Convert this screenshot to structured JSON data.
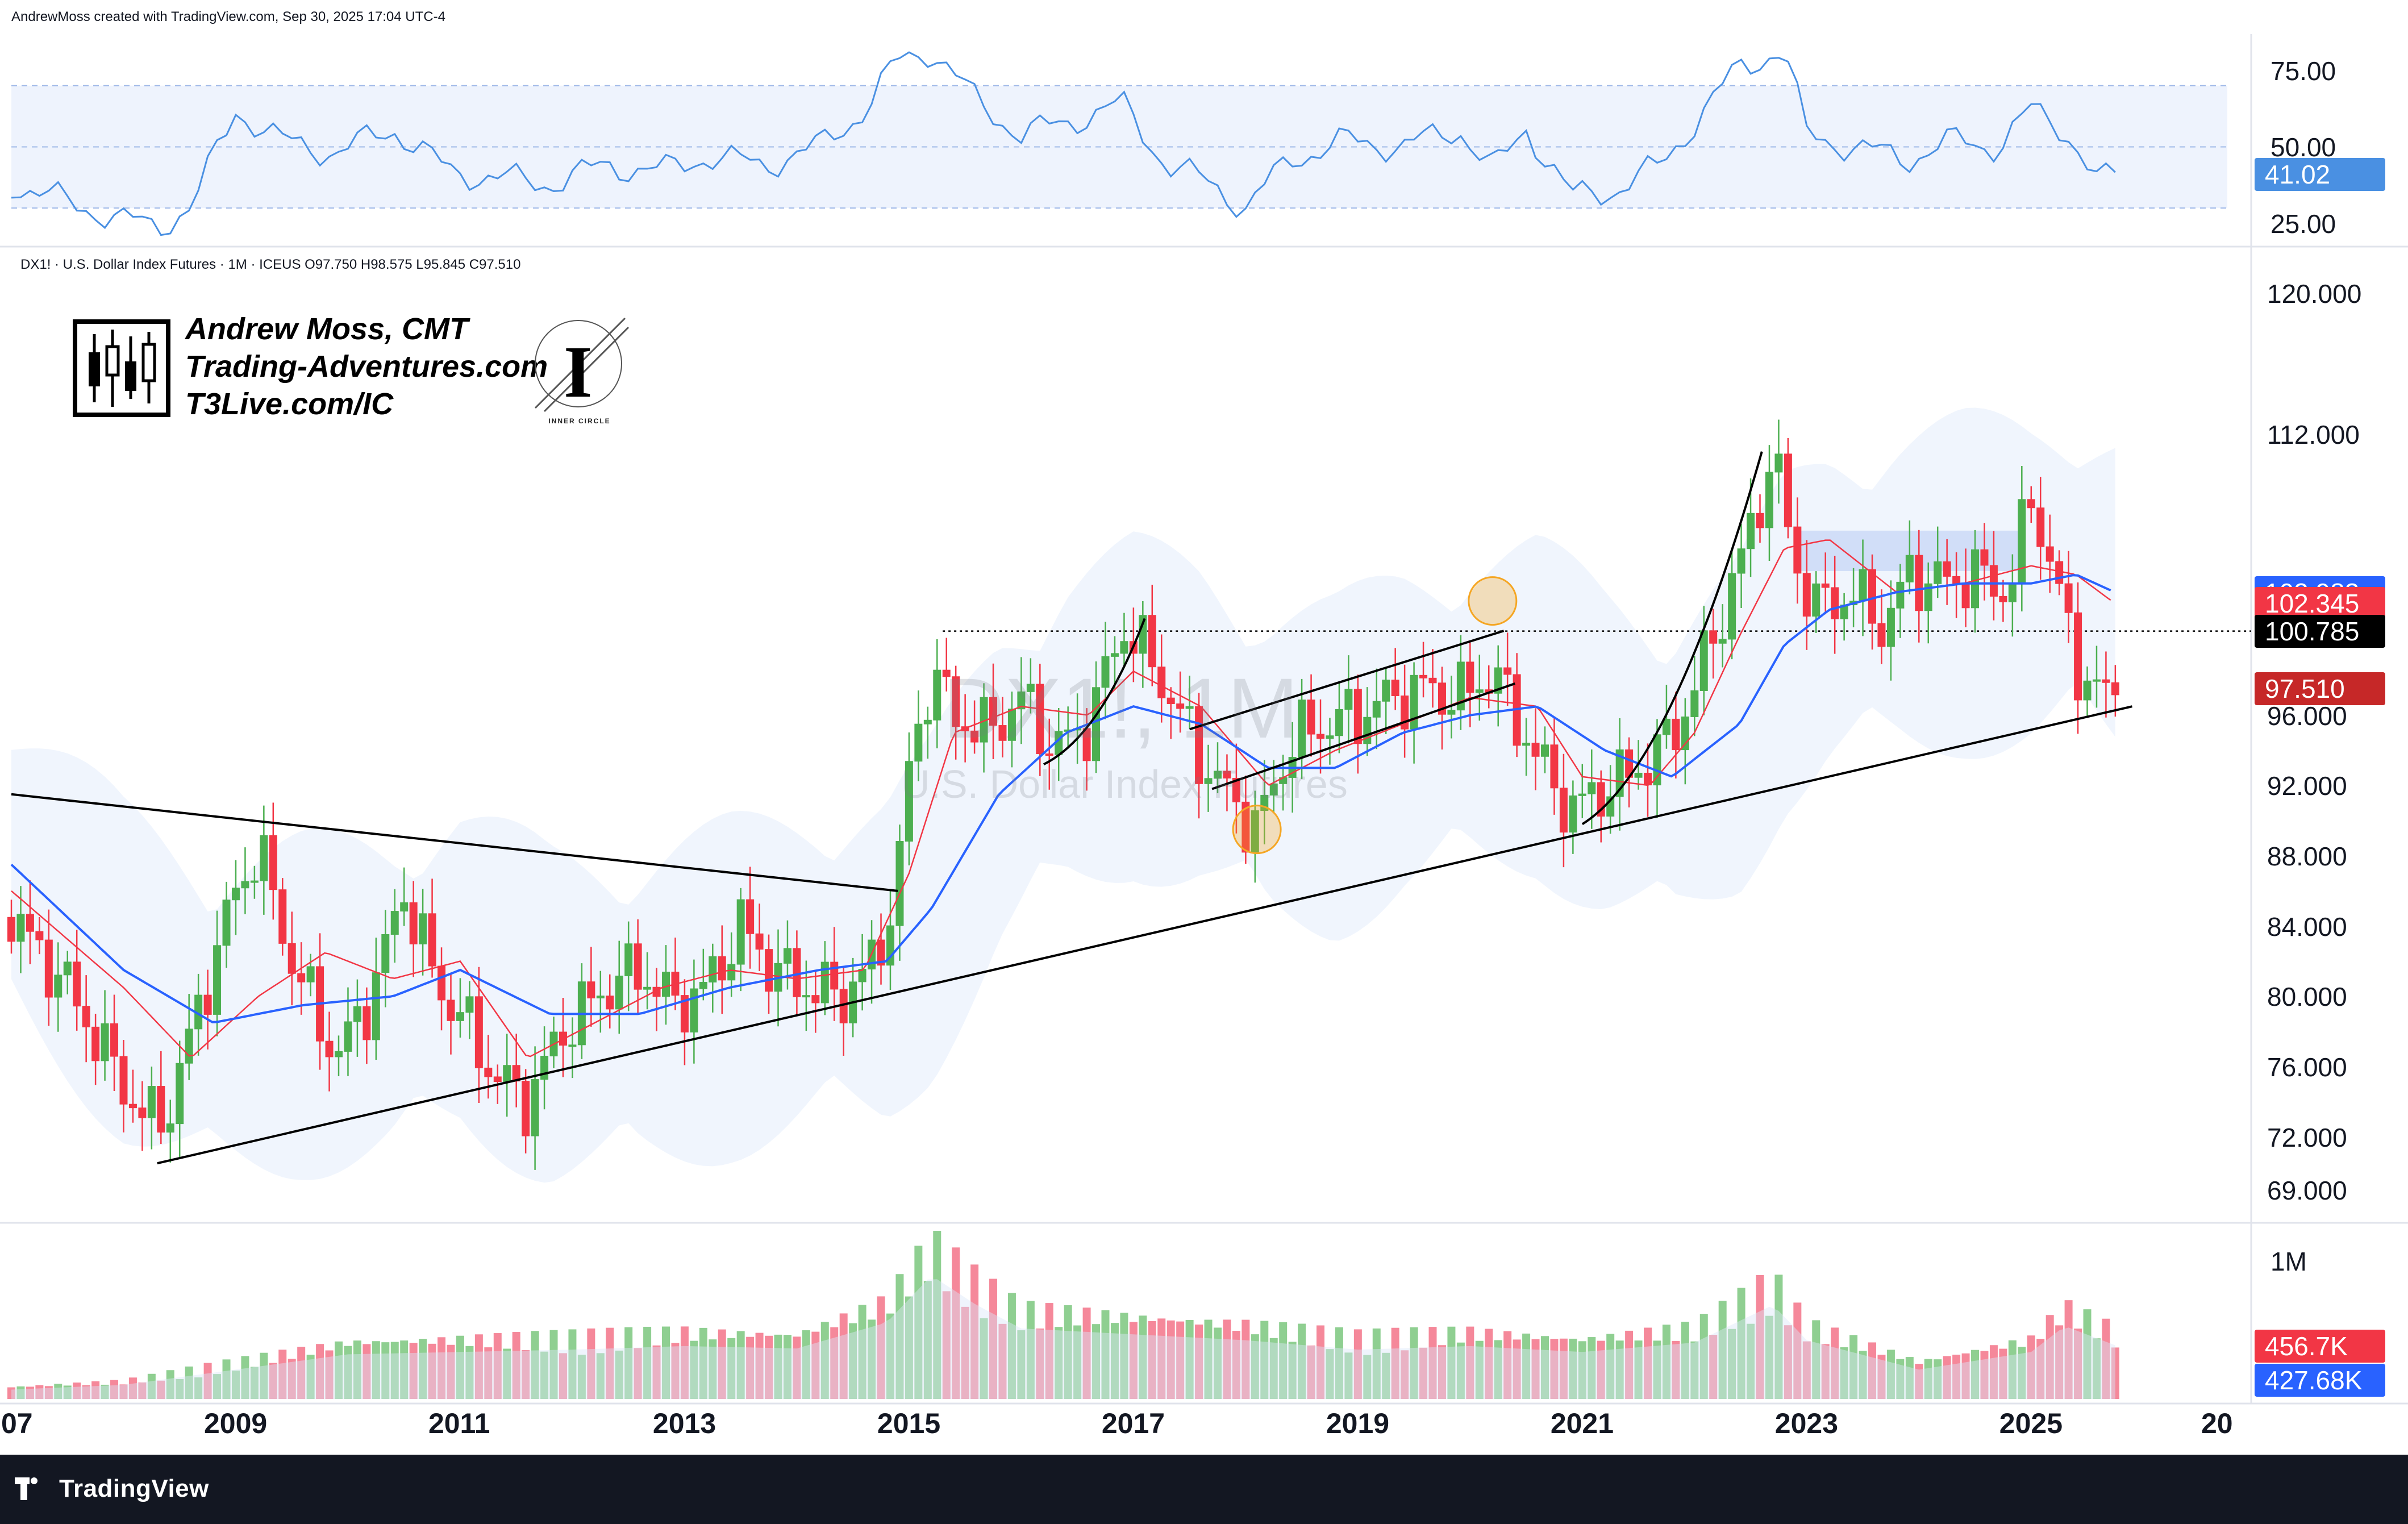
{
  "header": {
    "attribution": "AndrewMoss created with TradingView.com, Sep 30, 2025 17:04 UTC-4"
  },
  "symbol_info": {
    "line": "DX1! · U.S. Dollar Index Futures · 1M · ICEUS  O97.750  H98.575  L95.845  C97.510"
  },
  "branding": {
    "line1": "Andrew Moss, CMT",
    "line2": "Trading-Adventures.com",
    "line3": "T3Live.com/IC",
    "circle_label": "INNER CIRCLE",
    "circle_letter": "I"
  },
  "watermark": {
    "symbol": "DX1!, 1M",
    "name": "U.S. Dollar Index Futures"
  },
  "footer": {
    "brand": "TradingView"
  },
  "colors": {
    "up": "#4caf50",
    "down": "#f23645",
    "sma_fast": "#f23645",
    "sma_slow": "#2962ff",
    "rsi": "#4a90e2",
    "band_fill": "#e3edfb",
    "tag_blue": "#2962ff",
    "tag_red": "#f23645",
    "tag_black": "#000000",
    "tag_darkred": "#c62828"
  },
  "chart_data": [
    {
      "type": "line",
      "title": "RSI",
      "y_ticks": [
        "75.00",
        "50.00",
        "25.00"
      ],
      "ylim": [
        20,
        85
      ],
      "last_value_label": "41.02",
      "x": [
        2007.0,
        2007.5,
        2008.0,
        2008.3,
        2008.6,
        2009.0,
        2009.4,
        2009.9,
        2010.4,
        2010.9,
        2011.3,
        2011.8,
        2012.3,
        2012.8,
        2013.2,
        2013.7,
        2014.2,
        2014.6,
        2014.9,
        2015.2,
        2015.6,
        2016.0,
        2016.4,
        2016.9,
        2017.3,
        2017.7,
        2018.0,
        2018.4,
        2018.9,
        2019.4,
        2019.9,
        2020.2,
        2020.5,
        2020.9,
        2021.3,
        2021.7,
        2022.0,
        2022.4,
        2022.8,
        2023.0,
        2023.4,
        2023.9,
        2024.3,
        2024.7,
        2025.0,
        2025.3,
        2025.6,
        2025.75
      ],
      "values": [
        38,
        32,
        26,
        24,
        30,
        62,
        52,
        48,
        56,
        42,
        40,
        38,
        44,
        42,
        47,
        44,
        50,
        62,
        78,
        82,
        65,
        54,
        58,
        64,
        44,
        38,
        30,
        46,
        52,
        50,
        56,
        42,
        56,
        34,
        36,
        44,
        58,
        76,
        82,
        54,
        50,
        46,
        52,
        50,
        62,
        56,
        38,
        41
      ]
    },
    {
      "type": "candlestick",
      "title": "DX1! · U.S. Dollar Index Futures · 1M · ICEUS",
      "ohlc_last": {
        "open": 97.75,
        "high": 98.575,
        "low": 95.845,
        "close": 97.51
      },
      "y_ticks": [
        "120.000",
        "112.000",
        "96.000",
        "92.000",
        "88.000",
        "84.000",
        "80.000",
        "76.000",
        "72.000",
        "69.000"
      ],
      "x_ticks": [
        "07",
        "2009",
        "2011",
        "2013",
        "2015",
        "2017",
        "2019",
        "2021",
        "2023",
        "2025",
        "20"
      ],
      "xlim": [
        2007.0,
        2026.9
      ],
      "ylim": [
        67.5,
        121.5
      ],
      "price_tags": [
        {
          "label": "102.983",
          "value": 102.983,
          "color": "#2962ff"
        },
        {
          "label": "102.345",
          "value": 102.345,
          "color": "#f23645"
        },
        {
          "label": "100.785",
          "value": 100.785,
          "color": "#000000"
        },
        {
          "label": "97.510",
          "value": 97.51,
          "color": "#c62828"
        }
      ],
      "close_path": {
        "x": [
          2007.0,
          2007.5,
          2008.0,
          2008.2,
          2008.4,
          2008.7,
          2009.0,
          2009.2,
          2009.5,
          2009.9,
          2010.2,
          2010.5,
          2010.8,
          2011.0,
          2011.3,
          2011.6,
          2011.9,
          2012.3,
          2012.6,
          2012.9,
          2013.2,
          2013.5,
          2013.8,
          2014.1,
          2014.4,
          2014.7,
          2014.9,
          2015.0,
          2015.2,
          2015.4,
          2015.7,
          2016.0,
          2016.3,
          2016.6,
          2016.9,
          2017.0,
          2017.3,
          2017.6,
          2017.9,
          2018.1,
          2018.4,
          2018.7,
          2019.0,
          2019.3,
          2019.6,
          2019.9,
          2020.2,
          2020.4,
          2020.6,
          2020.9,
          2021.1,
          2021.4,
          2021.7,
          2021.9,
          2022.2,
          2022.5,
          2022.7,
          2022.9,
          2023.1,
          2023.4,
          2023.7,
          2023.9,
          2024.2,
          2024.5,
          2024.8,
          2025.0,
          2025.2,
          2025.4,
          2025.6,
          2025.75
        ],
        "close": [
          84.5,
          80.5,
          75.0,
          72.8,
          73.5,
          80.0,
          86.0,
          88.5,
          82.0,
          76.5,
          80.0,
          86.0,
          80.5,
          79.0,
          75.5,
          74.0,
          78.0,
          80.5,
          81.5,
          79.5,
          80.5,
          84.0,
          81.5,
          80.5,
          80.0,
          82.0,
          86.5,
          93.0,
          98.5,
          96.0,
          95.0,
          97.0,
          94.0,
          95.5,
          101.0,
          100.5,
          97.5,
          93.5,
          91.0,
          89.5,
          94.5,
          95.5,
          96.0,
          97.0,
          97.5,
          97.0,
          98.5,
          96.0,
          93.5,
          90.5,
          91.5,
          92.5,
          94.0,
          96.0,
          101.0,
          106.5,
          111.0,
          104.5,
          102.0,
          103.0,
          101.0,
          104.0,
          103.5,
          104.0,
          103.0,
          108.5,
          104.0,
          99.0,
          97.0,
          97.5
        ]
      },
      "sma_fast_path": {
        "x": [
          2007.0,
          2008.0,
          2008.6,
          2009.2,
          2009.8,
          2010.4,
          2011.0,
          2011.6,
          2012.2,
          2012.8,
          2013.4,
          2014.0,
          2014.6,
          2015.0,
          2015.4,
          2016.0,
          2016.6,
          2017.0,
          2017.6,
          2018.2,
          2018.8,
          2019.4,
          2020.0,
          2020.6,
          2021.0,
          2021.6,
          2022.0,
          2022.4,
          2022.8,
          2023.2,
          2023.8,
          2024.4,
          2025.0,
          2025.4,
          2025.75
        ],
        "values": [
          86.0,
          80.5,
          76.5,
          80.0,
          82.5,
          81.0,
          82.0,
          76.5,
          78.5,
          80.5,
          81.5,
          81.0,
          81.5,
          87.0,
          95.0,
          96.5,
          96.0,
          98.5,
          96.5,
          92.0,
          94.0,
          95.5,
          97.0,
          96.5,
          92.5,
          92.0,
          95.0,
          100.5,
          105.5,
          106.0,
          103.0,
          103.5,
          104.5,
          104.0,
          102.345
        ]
      },
      "sma_slow_path": {
        "x": [
          2007.0,
          2008.0,
          2008.8,
          2009.6,
          2010.4,
          2011.0,
          2011.8,
          2012.6,
          2013.4,
          2014.2,
          2014.8,
          2015.2,
          2015.8,
          2016.4,
          2017.0,
          2017.6,
          2018.2,
          2018.8,
          2019.4,
          2020.0,
          2020.6,
          2021.2,
          2021.8,
          2022.4,
          2022.8,
          2023.2,
          2023.8,
          2024.4,
          2025.0,
          2025.4,
          2025.75
        ],
        "values": [
          87.5,
          81.5,
          78.5,
          79.5,
          80.0,
          81.5,
          79.0,
          79.0,
          80.5,
          81.5,
          82.0,
          85.0,
          91.5,
          95.0,
          96.5,
          95.5,
          93.0,
          93.0,
          95.0,
          96.0,
          96.5,
          94.0,
          92.5,
          95.5,
          100.0,
          102.0,
          103.0,
          103.5,
          103.5,
          104.0,
          102.983
        ]
      },
      "horizontal_line": 100.785,
      "trendlines": [
        {
          "x1": 2007.0,
          "y1": 91.5,
          "x2": 2014.9,
          "y2": 86.0
        },
        {
          "x1": 2008.3,
          "y1": 70.5,
          "x2": 2025.9,
          "y2": 96.5
        }
      ],
      "channel": [
        {
          "x1": 2017.5,
          "y1": 95.2,
          "x2": 2020.3,
          "y2": 100.8
        },
        {
          "x1": 2017.7,
          "y1": 91.8,
          "x2": 2020.4,
          "y2": 97.8
        }
      ],
      "curves": [
        {
          "x": [
            2016.2,
            2016.7,
            2017.1
          ],
          "y": [
            93.2,
            94.8,
            101.5
          ]
        },
        {
          "x": [
            2021.0,
            2021.8,
            2022.6
          ],
          "y": [
            89.8,
            93.0,
            111.0
          ]
        }
      ],
      "highlights": [
        {
          "x": 2018.1,
          "y": 89.5,
          "color": "#f5a623"
        },
        {
          "x": 2020.2,
          "y": 102.5,
          "color": "#f5a623"
        }
      ]
    },
    {
      "type": "bar",
      "title": "Volume",
      "y_ticks": [
        "1M"
      ],
      "ylim": [
        0,
        1200000
      ],
      "tags": [
        {
          "label": "456.7K",
          "color": "#f23645"
        },
        {
          "label": "427.68K",
          "color": "#2962ff"
        }
      ],
      "x": [
        2007.0,
        2008.0,
        2009.0,
        2010.0,
        2011.0,
        2012.0,
        2013.0,
        2014.0,
        2014.8,
        2015.2,
        2015.6,
        2016.0,
        2017.0,
        2018.0,
        2019.0,
        2020.0,
        2021.0,
        2022.0,
        2022.7,
        2023.0,
        2024.0,
        2025.0,
        2025.3,
        2025.75
      ],
      "values": [
        80000,
        120000,
        250000,
        380000,
        400000,
        420000,
        450000,
        430000,
        650000,
        1050000,
        800000,
        600000,
        550000,
        500000,
        420000,
        450000,
        400000,
        480000,
        800000,
        500000,
        250000,
        400000,
        620000,
        456700
      ]
    }
  ]
}
